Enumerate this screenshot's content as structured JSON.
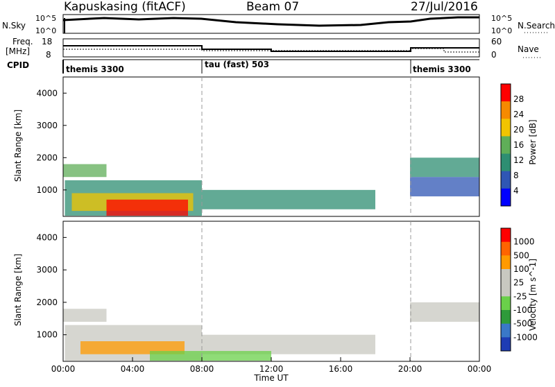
{
  "header": {
    "station": "Kapuskasing (fitACF)",
    "beam": "Beam 07",
    "date": "27/Jul/2016"
  },
  "top_panels": {
    "noise": {
      "left_label": "N.Sky",
      "right_label": "N.Search",
      "left_ticks": [
        "10^5",
        "10^0"
      ],
      "right_ticks": [
        "10^5",
        "10^0"
      ]
    },
    "freq": {
      "left_label_line1": "Freq.",
      "left_label_line2": "[MHz]",
      "right_label": "Nave",
      "left_ticks": [
        "18",
        "8"
      ],
      "right_ticks": [
        "60",
        "0"
      ]
    },
    "cpid": {
      "label": "CPID",
      "segments": [
        {
          "name": "themis 3300",
          "start_hour": 0,
          "end_hour": 8
        },
        {
          "name": "tau (fast) 503",
          "start_hour": 8,
          "end_hour": 20
        },
        {
          "name": "themis 3300",
          "start_hour": 20,
          "end_hour": 24
        }
      ]
    }
  },
  "chart_data": [
    {
      "type": "heatmap",
      "title": "Power",
      "ylabel": "Slant Range [km]",
      "ylim": [
        180,
        4500
      ],
      "yticks": [
        "4000",
        "3000",
        "2000",
        "1000"
      ],
      "colorbar_label": "Power [dB]",
      "colorbar_ticks": [
        "28",
        "24",
        "20",
        "16",
        "12",
        "8",
        "4"
      ],
      "colors": [
        "#0000ff",
        "#2f56b4",
        "#2e8e72",
        "#5fae58",
        "#f2c400",
        "#f68a00",
        "#ff0000"
      ],
      "regions": [
        {
          "x": [
            0.1,
            8.0
          ],
          "y": [
            200,
            1300
          ],
          "level": 2
        },
        {
          "x": [
            0.5,
            7.5
          ],
          "y": [
            350,
            900
          ],
          "level": 4
        },
        {
          "x": [
            2.5,
            7.2
          ],
          "y": [
            200,
            700
          ],
          "level": 6
        },
        {
          "x": [
            0.0,
            2.5
          ],
          "y": [
            1400,
            1800
          ],
          "level": 3
        },
        {
          "x": [
            8.0,
            18.0
          ],
          "y": [
            400,
            1000
          ],
          "level": 2
        },
        {
          "x": [
            20.0,
            24.0
          ],
          "y": [
            1400,
            2000
          ],
          "level": 2
        },
        {
          "x": [
            20.0,
            24.0
          ],
          "y": [
            800,
            1400
          ],
          "level": 1
        }
      ]
    },
    {
      "type": "heatmap",
      "title": "Velocity",
      "ylabel": "Slant Range [km]",
      "ylim": [
        180,
        4500
      ],
      "yticks": [
        "4000",
        "3000",
        "2000",
        "1000"
      ],
      "colorbar_label": "Velocity [m s^-1]",
      "colorbar_ticks": [
        "1000",
        "500",
        "100",
        "25",
        "-25",
        "-100",
        "-500",
        "-1000"
      ],
      "colors": [
        "#1e3cb4",
        "#3a78c8",
        "#2e9a3a",
        "#6ad04a",
        "#c8c8c0",
        "#c8c8c0",
        "#ff9a00",
        "#ff6400",
        "#ff0000"
      ],
      "regions": [
        {
          "x": [
            0.1,
            8.0
          ],
          "y": [
            200,
            1300
          ],
          "level": 4
        },
        {
          "x": [
            0.0,
            2.5
          ],
          "y": [
            1400,
            1800
          ],
          "level": 4
        },
        {
          "x": [
            8.0,
            18.0
          ],
          "y": [
            400,
            1000
          ],
          "level": 4
        },
        {
          "x": [
            20.0,
            24.0
          ],
          "y": [
            1400,
            2000
          ],
          "level": 4
        },
        {
          "x": [
            1.0,
            7.0
          ],
          "y": [
            400,
            800
          ],
          "level": 6
        },
        {
          "x": [
            5.0,
            12.0
          ],
          "y": [
            200,
            500
          ],
          "level": 3
        }
      ]
    }
  ],
  "xaxis": {
    "ticks": [
      "00:00",
      "04:00",
      "08:00",
      "12:00",
      "16:00",
      "20:00",
      "00:00"
    ],
    "label": "Time UT"
  }
}
